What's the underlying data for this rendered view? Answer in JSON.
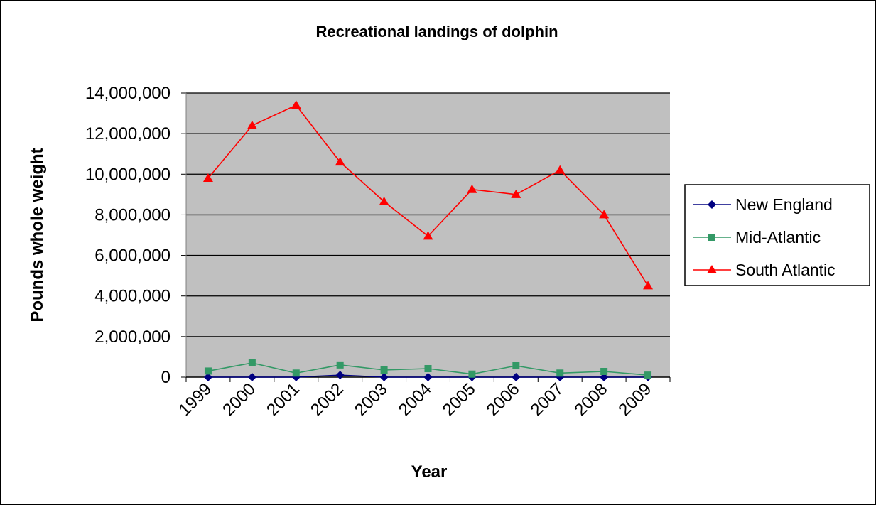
{
  "chart_data": {
    "type": "line",
    "title": "Recreational landings of dolphin",
    "xlabel": "Year",
    "ylabel": "Pounds whole weight",
    "categories": [
      "1999",
      "2000",
      "2001",
      "2002",
      "2003",
      "2004",
      "2005",
      "2006",
      "2007",
      "2008",
      "2009"
    ],
    "ylim": [
      0,
      14000000
    ],
    "y_ticks": [
      0,
      2000000,
      4000000,
      6000000,
      8000000,
      10000000,
      12000000,
      14000000
    ],
    "y_tick_labels": [
      "0",
      "2,000,000",
      "4,000,000",
      "6,000,000",
      "8,000,000",
      "10,000,000",
      "12,000,000",
      "14,000,000"
    ],
    "grid": "horizontal",
    "plot_background": "#c0c0c0",
    "legend_position": "right",
    "series": [
      {
        "name": "New England",
        "color": "#000080",
        "marker": "diamond",
        "values": [
          0,
          0,
          0,
          100000,
          0,
          0,
          0,
          0,
          0,
          0,
          0
        ]
      },
      {
        "name": "Mid-Atlantic",
        "color": "#339966",
        "marker": "square",
        "values": [
          300000,
          700000,
          200000,
          600000,
          350000,
          420000,
          150000,
          560000,
          200000,
          280000,
          100000
        ]
      },
      {
        "name": "South Atlantic",
        "color": "#ff0000",
        "marker": "triangle",
        "values": [
          9800000,
          12400000,
          13400000,
          10600000,
          8650000,
          6950000,
          9250000,
          9000000,
          10200000,
          8000000,
          4500000
        ]
      }
    ]
  }
}
